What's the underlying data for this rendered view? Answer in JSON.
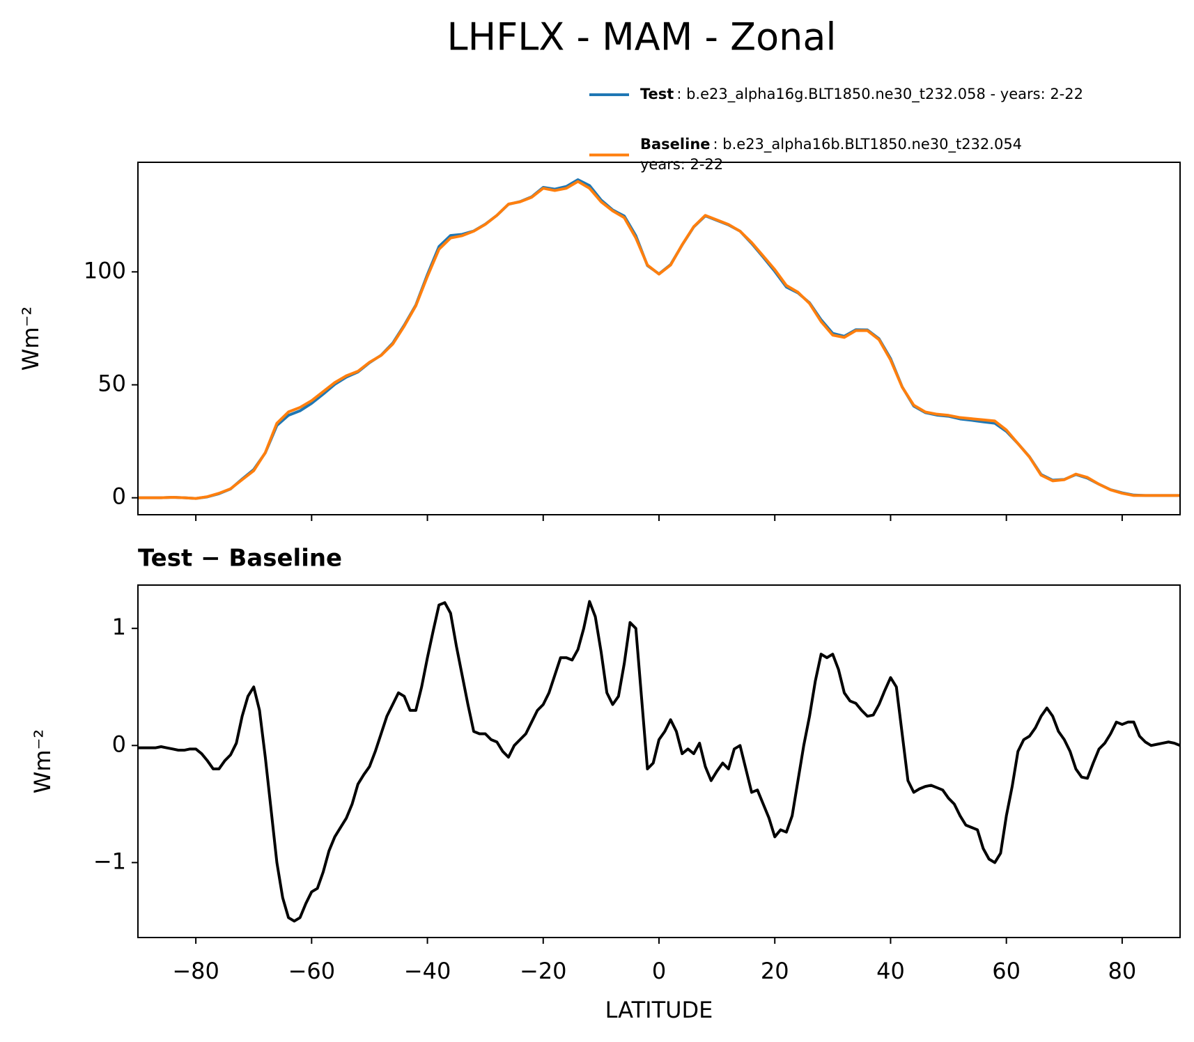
{
  "chart_data": [
    {
      "type": "line",
      "title": "LHFLX - MAM - Zonal",
      "ylabel": "Wm⁻²",
      "xlim": [
        -90,
        90
      ],
      "ylim": [
        -7.5,
        148.5
      ],
      "yticks": [
        0,
        50,
        100
      ],
      "x": [
        -90,
        -88,
        -86,
        -84,
        -82,
        -80,
        -78,
        -76,
        -74,
        -72,
        -70,
        -68,
        -66,
        -64,
        -62,
        -60,
        -58,
        -56,
        -54,
        -52,
        -50,
        -48,
        -46,
        -44,
        -42,
        -40,
        -38,
        -36,
        -34,
        -32,
        -30,
        -28,
        -26,
        -24,
        -22,
        -20,
        -18,
        -16,
        -14,
        -12,
        -10,
        -8,
        -6,
        -4,
        -2,
        0,
        2,
        4,
        6,
        8,
        10,
        12,
        14,
        16,
        18,
        20,
        22,
        24,
        26,
        28,
        30,
        32,
        34,
        36,
        38,
        40,
        42,
        44,
        46,
        48,
        50,
        52,
        54,
        56,
        58,
        60,
        62,
        64,
        66,
        68,
        70,
        72,
        74,
        76,
        78,
        80,
        82,
        84,
        86,
        88,
        90
      ],
      "series": [
        {
          "name": "Test",
          "legend_text": [
            ": b.e23_alpha16g.BLT1850.ne30_t232.058 - years: 2-22"
          ],
          "color": "#1f77b4",
          "values": [
            0,
            0,
            0,
            0.2,
            0,
            -0.3,
            0.4,
            1.8,
            3.9,
            8.3,
            12.5,
            19.9,
            32,
            36.5,
            38.5,
            41.8,
            45.9,
            50.2,
            53.4,
            55.7,
            59.8,
            63.1,
            68.4,
            76.4,
            85.3,
            98.8,
            111.2,
            116.1,
            116.6,
            118.1,
            121.1,
            125,
            129.9,
            131.1,
            133.2,
            137.4,
            136.6,
            137.8,
            140.8,
            138.2,
            131.8,
            127.4,
            124.7,
            116,
            102.8,
            99.1,
            103.2,
            111.9,
            119.9,
            124.8,
            122.8,
            120.8,
            118,
            112.6,
            106.5,
            100.2,
            93.3,
            90.7,
            86.3,
            78.8,
            72.8,
            71.5,
            74.4,
            74.3,
            70.4,
            61.6,
            49.1,
            40.6,
            37.7,
            36.6,
            36.1,
            34.9,
            34.3,
            33.6,
            33,
            29.4,
            24,
            18.1,
            10.3,
            7.8,
            8.1,
            10.3,
            8.7,
            6,
            3.6,
            2.2,
            1.2,
            1,
            1,
            1,
            1
          ]
        },
        {
          "name": "Baseline",
          "legend_text": [
            ": b.e23_alpha16b.BLT1850.ne30_t232.054",
            "years: 2-22"
          ],
          "color": "#ff7f0e",
          "values": [
            0,
            0,
            0,
            0.2,
            0,
            -0.3,
            0.5,
            2,
            4,
            8,
            12,
            20,
            33,
            38,
            40,
            43,
            47,
            51,
            54,
            56,
            60,
            63,
            68,
            76,
            85,
            98,
            110,
            115,
            116,
            118,
            121,
            125,
            130,
            131,
            133,
            137,
            136,
            137,
            140,
            137,
            131,
            127,
            124,
            115,
            103,
            99,
            103,
            112,
            120,
            125,
            123,
            121,
            118,
            113,
            107,
            101,
            94,
            91,
            86,
            78,
            72,
            71,
            74,
            74,
            70,
            61,
            49,
            41,
            38,
            37,
            36.5,
            35.5,
            35,
            34.5,
            34,
            30,
            24,
            18,
            10,
            7.5,
            8,
            10.5,
            9,
            6,
            3.5,
            2,
            1,
            1,
            1,
            1,
            1
          ]
        }
      ]
    },
    {
      "type": "line",
      "title": "Test − Baseline",
      "xlabel": "LATITUDE",
      "ylabel": "Wm⁻²",
      "xlim": [
        -90,
        90
      ],
      "ylim": [
        -1.64,
        1.37
      ],
      "xticks": [
        {
          "value": -80,
          "label": "−80"
        },
        {
          "value": -60,
          "label": "−60"
        },
        {
          "value": -40,
          "label": "−40"
        },
        {
          "value": -20,
          "label": "−20"
        },
        0,
        20,
        40,
        60,
        80
      ],
      "yticks": [
        {
          "value": -1,
          "label": "−1"
        },
        0,
        1
      ],
      "x": [
        -90,
        -89,
        -88,
        -87,
        -86,
        -85,
        -84,
        -83,
        -82,
        -81,
        -80,
        -79,
        -78,
        -77,
        -76,
        -75,
        -74,
        -73,
        -72,
        -71,
        -70,
        -69,
        -68,
        -67,
        -66,
        -65,
        -64,
        -63,
        -62,
        -61,
        -60,
        -59,
        -58,
        -57,
        -56,
        -55,
        -54,
        -53,
        -52,
        -51,
        -50,
        -49,
        -48,
        -47,
        -46,
        -45,
        -44,
        -43,
        -42,
        -41,
        -40,
        -39,
        -38,
        -37,
        -36,
        -35,
        -34,
        -33,
        -32,
        -31,
        -30,
        -29,
        -28,
        -27,
        -26,
        -25,
        -24,
        -23,
        -22,
        -21,
        -20,
        -19,
        -18,
        -17,
        -16,
        -15,
        -14,
        -13,
        -12,
        -11,
        -10,
        -9,
        -8,
        -7,
        -6,
        -5,
        -4,
        -3,
        -2,
        -1,
        0,
        1,
        2,
        3,
        4,
        5,
        6,
        7,
        8,
        9,
        10,
        11,
        12,
        13,
        14,
        15,
        16,
        17,
        18,
        19,
        20,
        21,
        22,
        23,
        24,
        25,
        26,
        27,
        28,
        29,
        30,
        31,
        32,
        33,
        34,
        35,
        36,
        37,
        38,
        39,
        40,
        41,
        42,
        43,
        44,
        45,
        46,
        47,
        48,
        49,
        50,
        51,
        52,
        53,
        54,
        55,
        56,
        57,
        58,
        59,
        60,
        61,
        62,
        63,
        64,
        65,
        66,
        67,
        68,
        69,
        70,
        71,
        72,
        73,
        74,
        75,
        76,
        77,
        78,
        79,
        80,
        81,
        82,
        83,
        84,
        85,
        86,
        87,
        88,
        89,
        90
      ],
      "series": [
        {
          "color": "#000000",
          "values": [
            -0.02,
            -0.02,
            -0.02,
            -0.02,
            -0.01,
            -0.02,
            -0.03,
            -0.04,
            -0.04,
            -0.03,
            -0.03,
            -0.07,
            -0.13,
            -0.2,
            -0.2,
            -0.13,
            -0.08,
            0.02,
            0.25,
            0.42,
            0.5,
            0.3,
            -0.1,
            -0.55,
            -1.0,
            -1.3,
            -1.47,
            -1.5,
            -1.47,
            -1.35,
            -1.25,
            -1.22,
            -1.08,
            -0.9,
            -0.78,
            -0.7,
            -0.62,
            -0.5,
            -0.33,
            -0.25,
            -0.18,
            -0.05,
            0.1,
            0.25,
            0.35,
            0.45,
            0.42,
            0.3,
            0.3,
            0.5,
            0.75,
            0.98,
            1.2,
            1.22,
            1.13,
            0.85,
            0.6,
            0.35,
            0.12,
            0.1,
            0.1,
            0.05,
            0.03,
            -0.05,
            -0.1,
            0.0,
            0.05,
            0.1,
            0.2,
            0.3,
            0.35,
            0.45,
            0.6,
            0.75,
            0.75,
            0.73,
            0.82,
            1.0,
            1.23,
            1.1,
            0.8,
            0.45,
            0.35,
            0.42,
            0.7,
            1.05,
            1.0,
            0.4,
            -0.2,
            -0.15,
            0.05,
            0.12,
            0.22,
            0.12,
            -0.07,
            -0.03,
            -0.07,
            0.02,
            -0.18,
            -0.3,
            -0.22,
            -0.15,
            -0.2,
            -0.03,
            0.0,
            -0.2,
            -0.4,
            -0.38,
            -0.5,
            -0.62,
            -0.78,
            -0.72,
            -0.74,
            -0.6,
            -0.3,
            0.0,
            0.25,
            0.55,
            0.78,
            0.75,
            0.78,
            0.65,
            0.45,
            0.38,
            0.36,
            0.3,
            0.25,
            0.26,
            0.35,
            0.47,
            0.58,
            0.5,
            0.1,
            -0.3,
            -0.4,
            -0.37,
            -0.35,
            -0.34,
            -0.36,
            -0.38,
            -0.45,
            -0.5,
            -0.6,
            -0.68,
            -0.7,
            -0.72,
            -0.88,
            -0.97,
            -1.0,
            -0.92,
            -0.6,
            -0.35,
            -0.05,
            0.05,
            0.08,
            0.15,
            0.25,
            0.32,
            0.25,
            0.12,
            0.05,
            -0.05,
            -0.2,
            -0.27,
            -0.28,
            -0.15,
            -0.03,
            0.02,
            0.1,
            0.2,
            0.18,
            0.2,
            0.2,
            0.08,
            0.03,
            0.0,
            0.01,
            0.02,
            0.03,
            0.02,
            0.0
          ]
        }
      ]
    }
  ]
}
